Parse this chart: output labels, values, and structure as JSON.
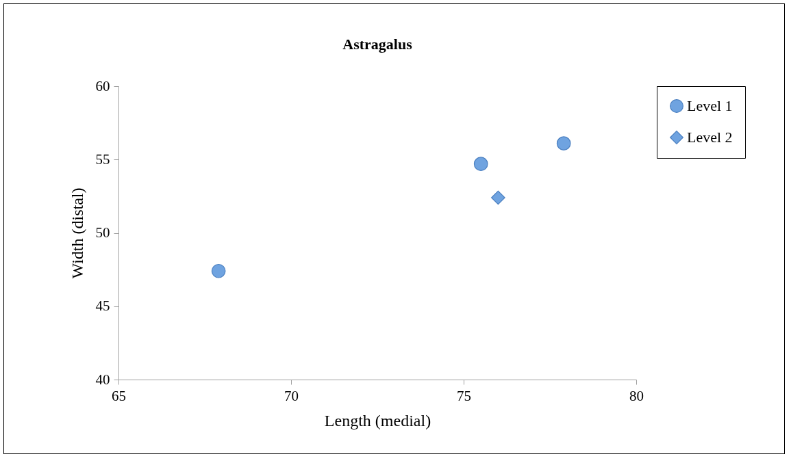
{
  "chart_data": {
    "type": "scatter",
    "title": "Astragalus",
    "xlabel": "Length (medial)",
    "ylabel": "Width (distal)",
    "xlim": [
      65,
      80
    ],
    "xticks": [
      65,
      70,
      75,
      80
    ],
    "ylim": [
      40,
      60
    ],
    "yticks": [
      40,
      45,
      50,
      55,
      60
    ],
    "grid": false,
    "legend": "right",
    "series": [
      {
        "name": "Level 1",
        "color": "#6fa3e0",
        "marker": "circle",
        "x": [
          67.9,
          75.5,
          77.9
        ],
        "values": [
          47.4,
          54.7,
          56.1
        ]
      },
      {
        "name": "Level 2",
        "color": "#6fa3e0",
        "marker": "diamond",
        "x": [
          76.0
        ],
        "values": [
          52.4
        ]
      }
    ]
  }
}
